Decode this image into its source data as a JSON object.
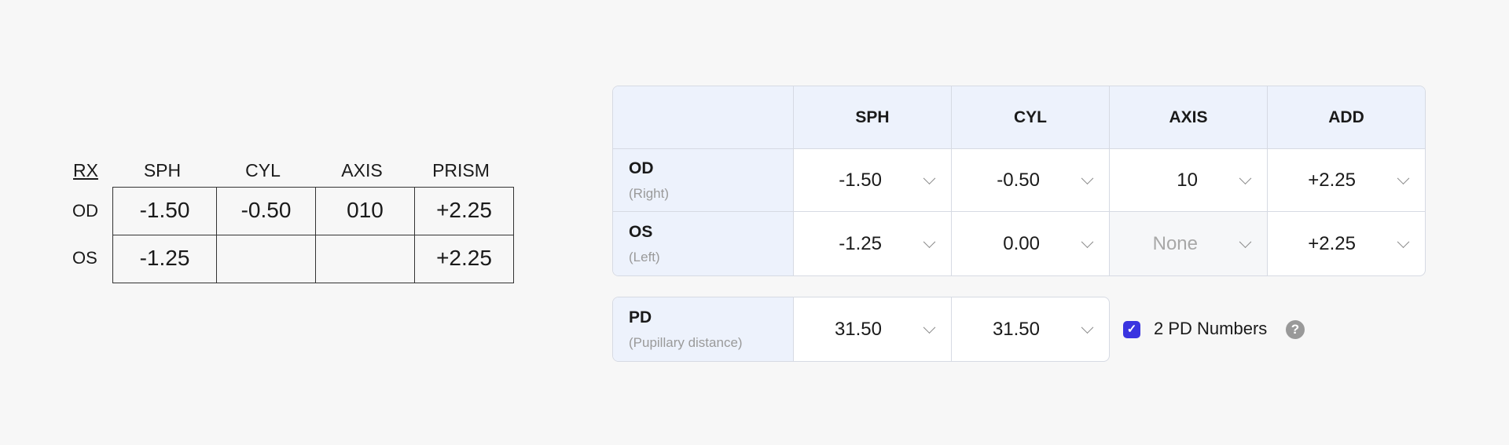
{
  "rx_card": {
    "label": "RX",
    "headers": [
      "SPH",
      "CYL",
      "AXIS",
      "PRISM"
    ],
    "rows": [
      {
        "eye": "OD",
        "values": [
          "-1.50",
          "-0.50",
          "010",
          "+2.25"
        ]
      },
      {
        "eye": "OS",
        "values": [
          "-1.25",
          "",
          "",
          "+2.25"
        ]
      }
    ]
  },
  "form": {
    "headers": [
      "SPH",
      "CYL",
      "AXIS",
      "ADD"
    ],
    "rows": [
      {
        "eye": "OD",
        "sub": "(Right)",
        "values": [
          "-1.50",
          "-0.50",
          "10",
          "+2.25"
        ]
      },
      {
        "eye": "OS",
        "sub": "(Left)",
        "values": [
          "-1.25",
          "0.00",
          "None",
          "+2.25"
        ]
      }
    ],
    "pd": {
      "label": "PD",
      "sub": "(Pupillary distance)",
      "values": [
        "31.50",
        "31.50"
      ]
    },
    "two_pd": {
      "label": "2 PD Numbers",
      "checked": true,
      "help": "?",
      "color": "#3a34e0"
    }
  }
}
